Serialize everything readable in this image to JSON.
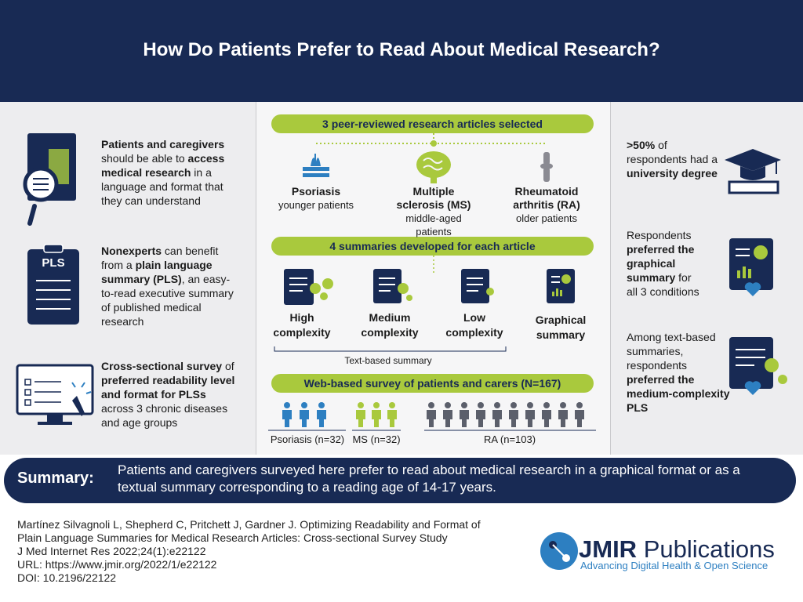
{
  "header": {
    "title": "How Do Patients Prefer to Read About Medical Research?"
  },
  "left": {
    "icon_label": "PLS",
    "items": [
      [
        {
          "text": "Patients and caregivers",
          "bold": true
        },
        {
          "text": " should be able to ",
          "bold": false
        },
        {
          "text": "access medical research",
          "bold": true
        },
        {
          "text": " in a language and format that they can understand",
          "bold": false
        }
      ],
      [
        {
          "text": "Nonexperts",
          "bold": true
        },
        {
          "text": " can benefit from a ",
          "bold": false
        },
        {
          "text": "plain language summary (PLS)",
          "bold": true
        },
        {
          "text": ", an easy-to-read executive summary of published medical research",
          "bold": false
        }
      ],
      [
        {
          "text": "Cross-sectional survey",
          "bold": true
        },
        {
          "text": " of ",
          "bold": false
        },
        {
          "text": "preferred readability level and format for PLSs",
          "bold": true
        },
        {
          "text": " across 3 chronic diseases and age groups",
          "bold": false
        }
      ]
    ]
  },
  "center": {
    "banner1": "3 peer-reviewed research articles selected",
    "articles": [
      {
        "name": "Psoriasis",
        "group": "younger patients"
      },
      {
        "name": "Multiple sclerosis (MS)",
        "group": "middle-aged patients"
      },
      {
        "name": "Rheumatoid arthritis (RA)",
        "group": "older patients"
      }
    ],
    "banner2": "4 summaries developed for each article",
    "summaries": [
      "High complexity",
      "Medium complexity",
      "Low complexity",
      "Graphical summary"
    ],
    "text_based_label": "Text-based summary",
    "banner3": "Web-based survey of patients and carers (N=167)",
    "groups": [
      "Psoriasis (n=32)",
      "MS (n=32)",
      "RA (n=103)"
    ]
  },
  "right": {
    "items": [
      [
        {
          "text": ">50%",
          "bold": true
        },
        {
          "text": " of respondents had a ",
          "bold": false
        },
        {
          "text": "university degree",
          "bold": true
        }
      ],
      [
        {
          "text": "Respondents ",
          "bold": false
        },
        {
          "text": "preferred the graphical summary",
          "bold": true
        },
        {
          "text": " for all 3 conditions",
          "bold": false
        }
      ],
      [
        {
          "text": "Among text-based summaries, respondents ",
          "bold": false
        },
        {
          "text": "preferred the medium-complexity PLS",
          "bold": true
        }
      ]
    ]
  },
  "summary": {
    "label": "Summary:",
    "text": "Patients and caregivers surveyed here prefer to read about medical research in a graphical format or as a textual summary corresponding to a reading age of 14-17 years."
  },
  "citation": [
    "Martínez Silvagnoli L, Shepherd C, Pritchett J, Gardner J. Optimizing Readability and Format of",
    "Plain Language Summaries for Medical Research Articles: Cross-sectional Survey Study",
    "J Med Internet Res 2022;24(1):e22122",
    "URL: https://www.jmir.org/2022/1/e22122",
    "DOI: 10.2196/22122"
  ],
  "logo": {
    "name_bold": "JMIR",
    "name": " Publications",
    "tagline": "Advancing Digital Health & Open Science"
  }
}
